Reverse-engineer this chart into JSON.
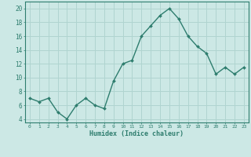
{
  "title": "",
  "xlabel": "Humidex (Indice chaleur)",
  "ylabel": "",
  "x": [
    0,
    1,
    2,
    3,
    4,
    5,
    6,
    7,
    8,
    9,
    10,
    11,
    12,
    13,
    14,
    15,
    16,
    17,
    18,
    19,
    20,
    21,
    22,
    23
  ],
  "y": [
    7.0,
    6.5,
    7.0,
    5.0,
    4.0,
    6.0,
    7.0,
    6.0,
    5.5,
    9.5,
    12.0,
    12.5,
    16.0,
    17.5,
    19.0,
    20.0,
    18.5,
    16.0,
    14.5,
    13.5,
    10.5,
    11.5,
    10.5,
    11.5
  ],
  "line_color": "#2e7d6e",
  "marker": "D",
  "marker_size": 2.0,
  "line_width": 1.0,
  "bg_color": "#cce8e5",
  "grid_color": "#b0d4d0",
  "tick_color": "#2e7d6e",
  "label_color": "#2e7d6e",
  "xlim": [
    -0.5,
    23.5
  ],
  "ylim": [
    3.5,
    21.0
  ],
  "yticks": [
    4,
    6,
    8,
    10,
    12,
    14,
    16,
    18,
    20
  ],
  "xticks": [
    0,
    1,
    2,
    3,
    4,
    5,
    6,
    7,
    8,
    9,
    10,
    11,
    12,
    13,
    14,
    15,
    16,
    17,
    18,
    19,
    20,
    21,
    22,
    23
  ]
}
